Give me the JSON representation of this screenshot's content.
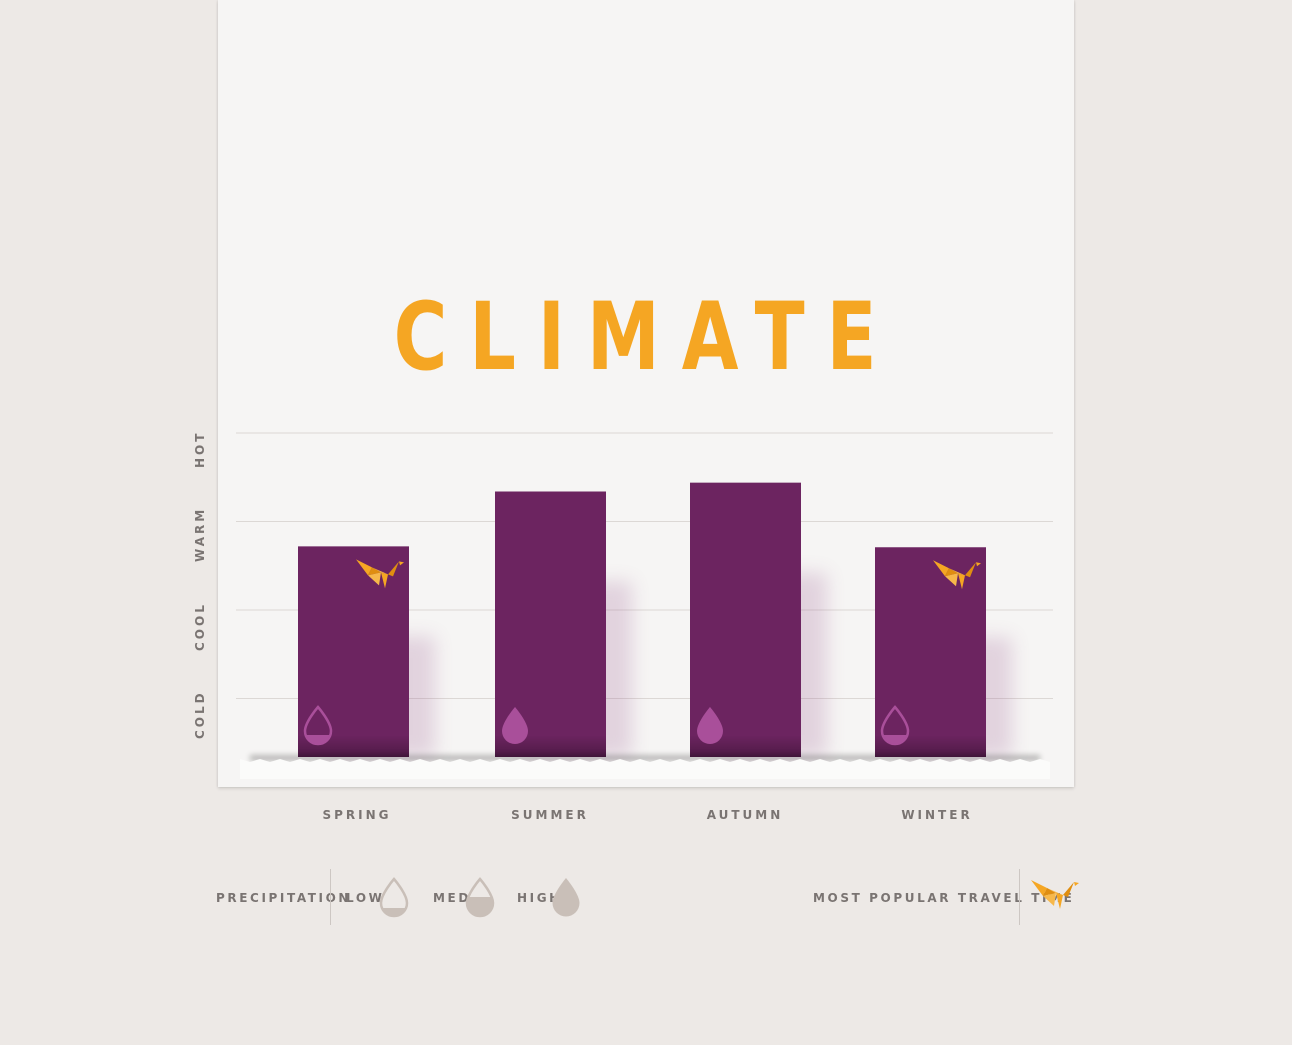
{
  "chart_data": {
    "type": "bar",
    "title": "CLIMATE",
    "categories": [
      "SPRING",
      "SUMMER",
      "AUTUMN",
      "WINTER"
    ],
    "y_levels": [
      "COLD",
      "COOL",
      "WARM",
      "HOT"
    ],
    "ylim": [
      0,
      4
    ],
    "values": [
      2.38,
      3.0,
      3.1,
      2.37
    ],
    "precipitation": [
      "low",
      "high",
      "high",
      "low"
    ],
    "most_popular": [
      true,
      false,
      false,
      true
    ],
    "grid": true
  },
  "legend": {
    "precipitation_label": "PRECIPITATION",
    "levels": [
      "LOW",
      "MED",
      "HIGH"
    ],
    "popular_label": "MOST POPULAR TRAVEL TIME"
  },
  "colors": {
    "bar": "#6c2460",
    "accent": "#f5a623",
    "drop_on_bar": "#a94f9a",
    "drop_legend": "#c9bfb8"
  }
}
